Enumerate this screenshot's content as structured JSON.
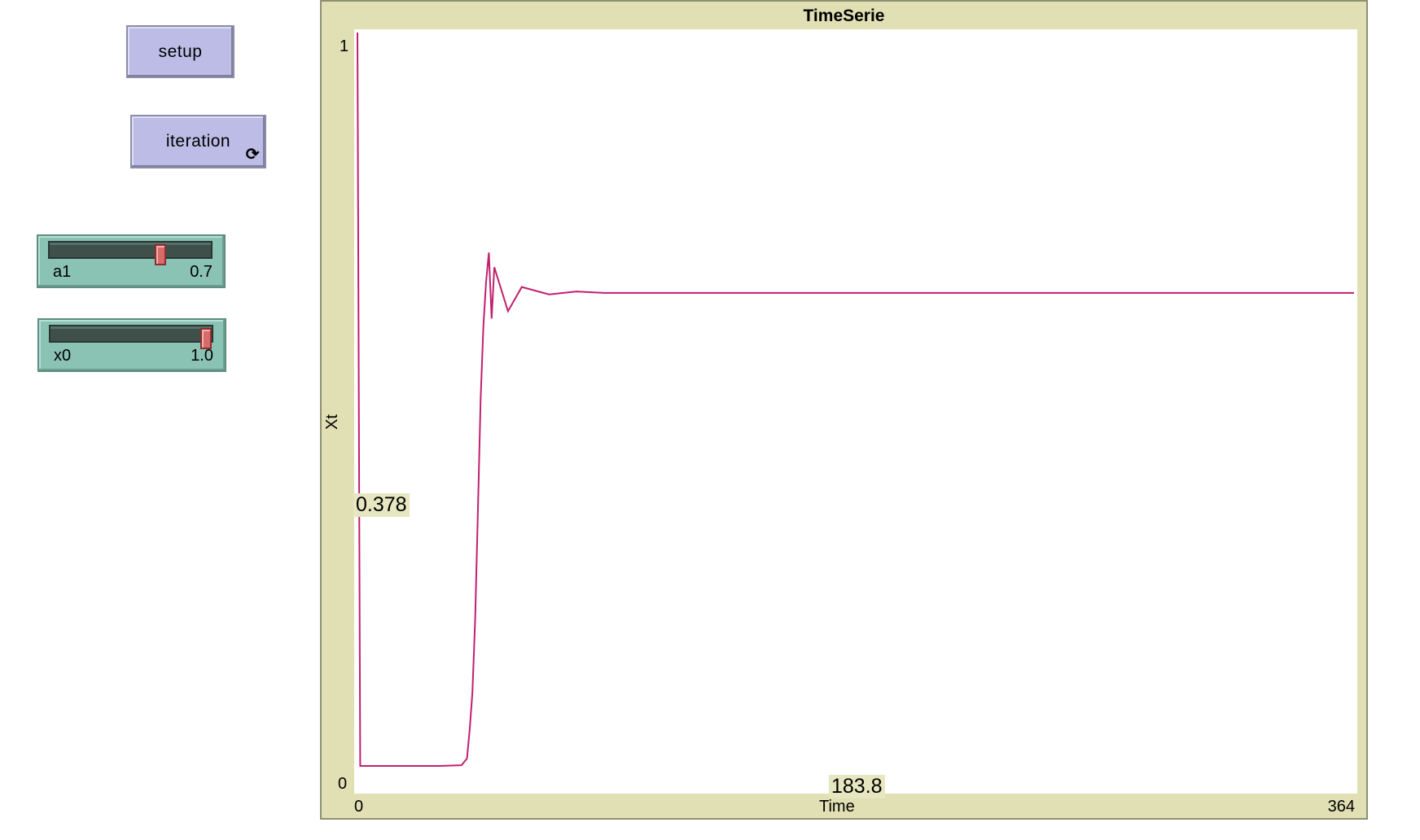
{
  "buttons": {
    "setup": "setup",
    "iteration": "iteration",
    "forever_icon": "⟳"
  },
  "sliders": [
    {
      "name": "a1",
      "value": "0.7",
      "fraction": 0.7
    },
    {
      "name": "x0",
      "value": "1.0",
      "fraction": 1.0
    }
  ],
  "plot": {
    "title": "TimeSerie",
    "xlabel": "Time",
    "ylabel": "Xt",
    "x_min": "0",
    "x_max": "364",
    "y_min": "0",
    "y_max": "1",
    "x_readout": "183.8",
    "y_readout": "0.378"
  },
  "chart_data": {
    "type": "line",
    "title": "TimeSerie",
    "xlabel": "Time",
    "ylabel": "Xt",
    "xlim": [
      0,
      364
    ],
    "ylim": [
      0,
      1
    ],
    "grid": false,
    "series": [
      {
        "color": "#c0206f",
        "x": [
          0,
          1,
          2,
          3,
          5,
          10,
          20,
          30,
          38,
          40,
          41,
          42,
          43,
          44,
          45,
          46,
          47,
          48,
          49,
          50,
          55,
          60,
          70,
          80,
          90,
          100,
          104,
          150,
          200,
          250,
          300,
          364
        ],
        "y": [
          1.0,
          0.0,
          0.0,
          0.0,
          0.0,
          0.0,
          0.0,
          0.0,
          0.001,
          0.01,
          0.05,
          0.1,
          0.2,
          0.35,
          0.5,
          0.6,
          0.66,
          0.7,
          0.61,
          0.68,
          0.62,
          0.653,
          0.643,
          0.647,
          0.645,
          0.645,
          0.645,
          0.645,
          0.645,
          0.645,
          0.645,
          0.645
        ]
      }
    ]
  }
}
